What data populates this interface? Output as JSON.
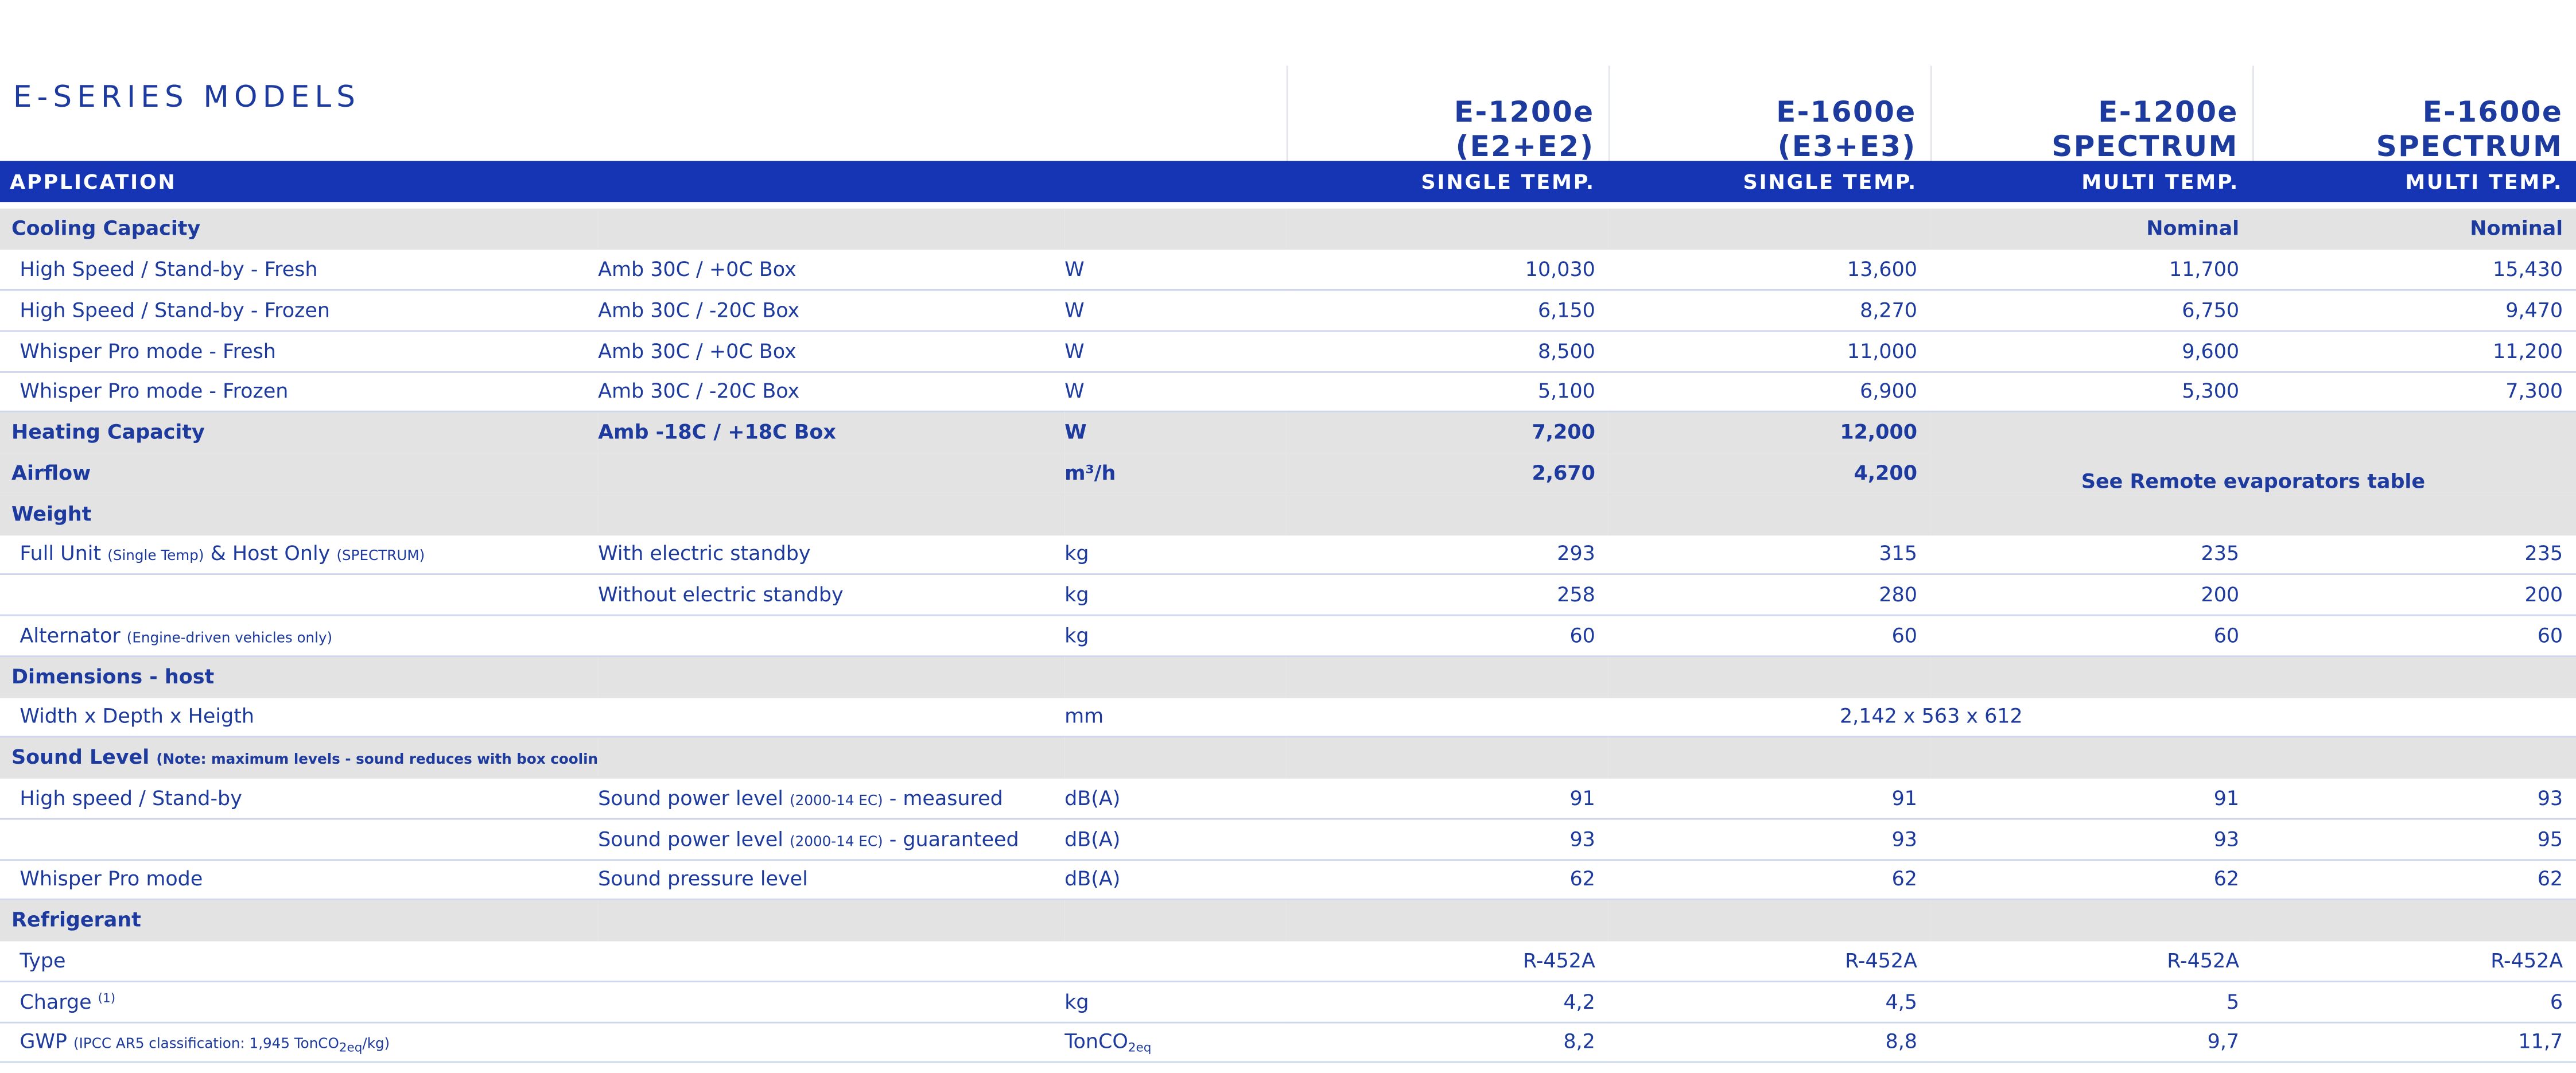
{
  "header": {
    "title": "E-SERIES MODELS",
    "models": [
      [
        "E-1200e",
        "(E2+E2)"
      ],
      [
        "E-1600e",
        "(E3+E3)"
      ],
      [
        "E-1200e",
        "SPECTRUM"
      ],
      [
        "E-1600e",
        "SPECTRUM"
      ]
    ]
  },
  "application": {
    "label": "APPLICATION",
    "values": [
      "SINGLE TEMP.",
      "SINGLE TEMP.",
      "MULTI TEMP.",
      "MULTI TEMP."
    ]
  },
  "rows": [
    {
      "kind": "section",
      "label": [
        {
          "text": "Cooling Capacity"
        }
      ],
      "values": [
        null,
        null,
        "Nominal",
        "Nominal"
      ]
    },
    {
      "kind": "data",
      "label": [
        {
          "text": "High Speed / Stand-by - Fresh"
        }
      ],
      "condition": [
        {
          "text": "Amb 30C / +0C Box"
        }
      ],
      "unit": [
        {
          "text": "W"
        }
      ],
      "values": [
        "10,030",
        "13,600",
        "11,700",
        "15,430"
      ]
    },
    {
      "kind": "data",
      "label": [
        {
          "text": "High Speed / Stand-by - Frozen"
        }
      ],
      "condition": [
        {
          "text": "Amb 30C / -20C Box"
        }
      ],
      "unit": [
        {
          "text": "W"
        }
      ],
      "values": [
        "6,150",
        "8,270",
        "6,750",
        "9,470"
      ]
    },
    {
      "kind": "data",
      "label": [
        {
          "text": "Whisper Pro mode - Fresh"
        }
      ],
      "condition": [
        {
          "text": "Amb 30C / +0C Box"
        }
      ],
      "unit": [
        {
          "text": "W"
        }
      ],
      "values": [
        "8,500",
        "11,000",
        "9,600",
        "11,200"
      ]
    },
    {
      "kind": "data",
      "label": [
        {
          "text": "Whisper Pro mode - Frozen"
        }
      ],
      "condition": [
        {
          "text": "Amb 30C / -20C Box"
        }
      ],
      "unit": [
        {
          "text": "W"
        }
      ],
      "values": [
        "5,100",
        "6,900",
        "5,300",
        "7,300"
      ]
    },
    {
      "kind": "section",
      "label": [
        {
          "text": "Heating Capacity"
        }
      ],
      "condition": [
        {
          "text": "Amb -18C / +18C Box"
        }
      ],
      "unit": [
        {
          "text": "W"
        }
      ],
      "values": [
        "7,200",
        "12,000"
      ],
      "note": "See Remote evaporators table"
    },
    {
      "kind": "section",
      "label": [
        {
          "text": "Airflow"
        }
      ],
      "unit": [
        {
          "text": "m³/h"
        }
      ],
      "values": [
        "2,670",
        "4,200"
      ]
    },
    {
      "kind": "section",
      "label": [
        {
          "text": "Weight"
        }
      ]
    },
    {
      "kind": "data",
      "label": [
        {
          "text": "Full Unit "
        },
        {
          "text": "(Single Temp)",
          "style": "small"
        },
        {
          "text": " & Host Only "
        },
        {
          "text": "(SPECTRUM)",
          "style": "small"
        }
      ],
      "condition": [
        {
          "text": "With electric standby"
        }
      ],
      "unit": [
        {
          "text": "kg"
        }
      ],
      "values": [
        "293",
        "315",
        "235",
        "235"
      ]
    },
    {
      "kind": "data",
      "condition": [
        {
          "text": "Without electric standby"
        }
      ],
      "unit": [
        {
          "text": "kg"
        }
      ],
      "values": [
        "258",
        "280",
        "200",
        "200"
      ]
    },
    {
      "kind": "data",
      "label": [
        {
          "text": "Alternator "
        },
        {
          "text": "(Engine-driven vehicles only)",
          "style": "small"
        }
      ],
      "unit": [
        {
          "text": "kg"
        }
      ],
      "values": [
        "60",
        "60",
        "60",
        "60"
      ]
    },
    {
      "kind": "section",
      "label": [
        {
          "text": "Dimensions - host"
        }
      ]
    },
    {
      "kind": "data",
      "label": [
        {
          "text": "Width x Depth x Heigth"
        }
      ],
      "unit": [
        {
          "text": "mm"
        }
      ],
      "shared": "2,142 x 563 x 612"
    },
    {
      "kind": "section",
      "label": [
        {
          "text": "Sound Level "
        },
        {
          "text": "(Note: maximum levels - sound reduces with box cooling needs)",
          "style": "small"
        }
      ]
    },
    {
      "kind": "data",
      "label": [
        {
          "text": "High speed / Stand-by"
        }
      ],
      "condition": [
        {
          "text": "Sound power level "
        },
        {
          "text": "(2000-14 EC)",
          "style": "small"
        },
        {
          "text": " - measured"
        }
      ],
      "unit": [
        {
          "text": "dB(A)"
        }
      ],
      "values": [
        "91",
        "91",
        "91",
        "93"
      ]
    },
    {
      "kind": "data",
      "condition": [
        {
          "text": "Sound power level "
        },
        {
          "text": "(2000-14 EC)",
          "style": "small"
        },
        {
          "text": " - guaranteed"
        }
      ],
      "unit": [
        {
          "text": "dB(A)"
        }
      ],
      "values": [
        "93",
        "93",
        "93",
        "95"
      ]
    },
    {
      "kind": "data",
      "label": [
        {
          "text": "Whisper Pro mode"
        }
      ],
      "condition": [
        {
          "text": "Sound pressure level"
        }
      ],
      "unit": [
        {
          "text": "dB(A)"
        }
      ],
      "values": [
        "62",
        "62",
        "62",
        "62"
      ]
    },
    {
      "kind": "section",
      "label": [
        {
          "text": "Refrigerant"
        }
      ]
    },
    {
      "kind": "data",
      "label": [
        {
          "text": "Type"
        }
      ],
      "values": [
        "R-452A",
        "R-452A",
        "R-452A",
        "R-452A"
      ]
    },
    {
      "kind": "data",
      "label": [
        {
          "text": "Charge "
        },
        {
          "text": "(1)",
          "style": "sup"
        }
      ],
      "unit": [
        {
          "text": "kg"
        }
      ],
      "values": [
        "4,2",
        "4,5",
        "5",
        "6"
      ]
    },
    {
      "kind": "data",
      "label": [
        {
          "text": "GWP "
        },
        {
          "text": "(IPCC AR5 classification: 1,945 TonCO",
          "style": "small"
        },
        {
          "text": "2eq",
          "style": "sub"
        },
        {
          "text": "/kg)",
          "style": "small"
        }
      ],
      "unit": [
        {
          "text": "TonCO"
        },
        {
          "text": "2eq",
          "style": "sub"
        }
      ],
      "values": [
        "8,2",
        "8,8",
        "9,7",
        "11,7"
      ]
    }
  ]
}
